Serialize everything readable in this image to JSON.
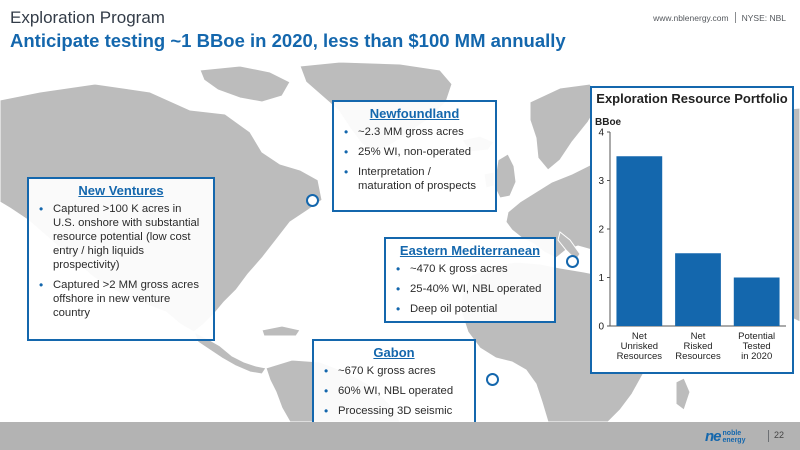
{
  "header": {
    "label": "Exploration Program",
    "title": "Anticipate testing ~1 BBoe in 2020, less than $100 MM annually",
    "website": "www.nblenergy.com",
    "ticker": "NYSE: NBL"
  },
  "colors": {
    "accent": "#1467ad",
    "land": "#bcbcbc",
    "footer": "#b3b3b3",
    "bar": "#1467ad"
  },
  "callouts": {
    "new_ventures": {
      "title": "New Ventures",
      "bullets": [
        "Captured >100 K acres in U.S. onshore with substantial resource potential (low cost entry / high liquids prospectivity)",
        "Captured >2 MM gross acres offshore in new venture country"
      ]
    },
    "newfoundland": {
      "title": "Newfoundland",
      "bullets": [
        "~2.3 MM gross acres",
        "25% WI, non-operated",
        "Interpretation / maturation of prospects"
      ]
    },
    "eastern_med": {
      "title": "Eastern Mediterranean",
      "bullets": [
        "~470 K gross acres",
        "25-40% WI, NBL operated",
        "Deep oil potential"
      ]
    },
    "gabon": {
      "title": "Gabon",
      "bullets": [
        "~670 K gross acres",
        "60% WI, NBL operated",
        "Processing 3D seismic"
      ]
    }
  },
  "chart_data": {
    "type": "bar",
    "title": "Exploration Resource Portfolio",
    "ylabel": "BBoe",
    "ylim": [
      0,
      4
    ],
    "yticks": [
      0,
      1,
      2,
      3,
      4
    ],
    "categories": [
      [
        "Net",
        "Unrisked",
        "Resources"
      ],
      [
        "Net",
        "Risked",
        "Resources"
      ],
      [
        "Potential",
        "Tested",
        "in 2020"
      ]
    ],
    "values": [
      3.5,
      1.5,
      1.0
    ],
    "grid": false
  },
  "footer": {
    "logo_mark": "ne",
    "logo_text_1": "noble",
    "logo_text_2": "energy",
    "page_number": "22"
  }
}
